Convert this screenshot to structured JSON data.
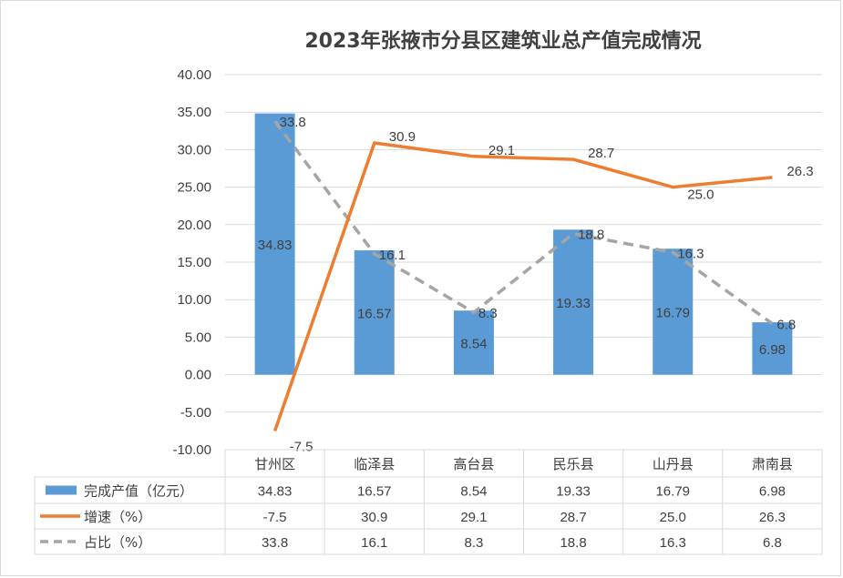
{
  "colors": {
    "bar": "#5b9bd5",
    "growth_line": "#ed7d31",
    "share_line": "#a5a5a5",
    "grid": "#d9d9d9",
    "text": "#404040"
  },
  "chart_data": {
    "type": "bar",
    "title": "2023年张掖市分县区建筑业总产值完成情况",
    "categories": [
      "甘州区",
      "临泽县",
      "高台县",
      "民乐县",
      "山丹县",
      "肃南县"
    ],
    "ylim": [
      -10,
      40
    ],
    "y_ticks": [
      "40.00",
      "35.00",
      "30.00",
      "25.00",
      "20.00",
      "15.00",
      "10.00",
      "5.00",
      "0.00",
      "-5.00",
      "-10.00"
    ],
    "grid": true,
    "legend": "data-table",
    "series": [
      {
        "name": "完成产值（亿元）",
        "type": "bar",
        "values": [
          34.83,
          16.57,
          8.54,
          19.33,
          16.79,
          6.98
        ],
        "labels": [
          "34.83",
          "16.57",
          "8.54",
          "19.33",
          "16.79",
          "6.98"
        ]
      },
      {
        "name": "增速（%）",
        "type": "line",
        "values": [
          -7.5,
          30.9,
          29.1,
          28.7,
          25.0,
          26.3
        ],
        "labels": [
          "-7.5",
          "30.9",
          "29.1",
          "28.7",
          "25.0",
          "26.3"
        ]
      },
      {
        "name": "占比（%）",
        "type": "line",
        "style": "dashed",
        "values": [
          33.8,
          16.1,
          8.3,
          18.8,
          16.3,
          6.8
        ],
        "labels": [
          "33.8",
          "16.1",
          "8.3",
          "18.8",
          "16.3",
          "6.8"
        ]
      }
    ]
  }
}
